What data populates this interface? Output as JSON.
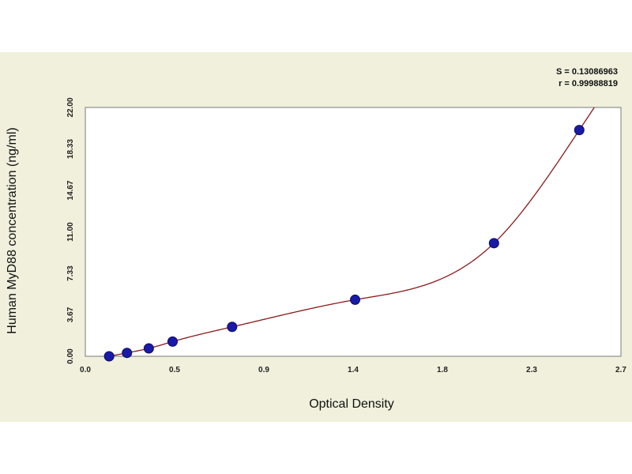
{
  "chart_data": {
    "type": "scatter",
    "title": "",
    "xlabel": "Optical Density",
    "ylabel": "Human MyD88 concentration (ng/ml)",
    "xlim": [
      0.0,
      2.7
    ],
    "ylim": [
      0.0,
      22.0
    ],
    "x_ticks": [
      "0.0",
      "0.5",
      "0.9",
      "1.4",
      "1.8",
      "2.3",
      "2.7"
    ],
    "x_tick_values": [
      0.0,
      0.45,
      0.9,
      1.35,
      1.8,
      2.25,
      2.7
    ],
    "y_ticks": [
      "0.00",
      "3.67",
      "7.33",
      "11.00",
      "14.67",
      "18.33",
      "22.00"
    ],
    "y_tick_values": [
      0.0,
      3.67,
      7.33,
      11.0,
      14.67,
      18.33,
      22.0
    ],
    "grid": true,
    "stats": {
      "s": "S = 0.13086963",
      "r": "r = 0.99988819"
    },
    "series": [
      {
        "points": [
          {
            "x": 0.12,
            "y": 0.0
          },
          {
            "x": 0.21,
            "y": 0.3
          },
          {
            "x": 0.32,
            "y": 0.7
          },
          {
            "x": 0.44,
            "y": 1.3
          },
          {
            "x": 0.74,
            "y": 2.6
          },
          {
            "x": 1.36,
            "y": 5.0
          },
          {
            "x": 2.06,
            "y": 10.0
          },
          {
            "x": 2.49,
            "y": 20.0
          }
        ]
      }
    ],
    "colors": {
      "background": "#f0f0dd",
      "plot_area": "#ffffff",
      "grid": "#9a9a9a",
      "curve": "#8b1a1a",
      "marker": "#1a1aa8"
    }
  }
}
